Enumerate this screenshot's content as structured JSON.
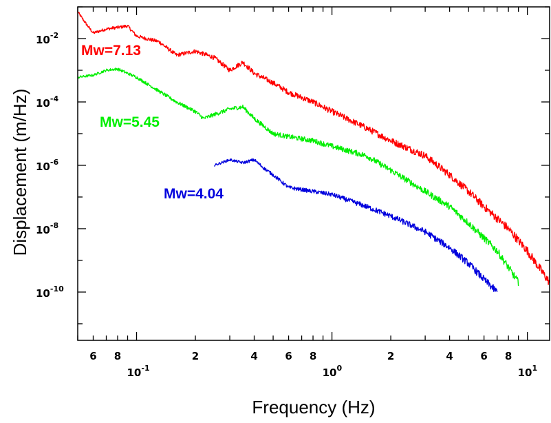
{
  "chart_data": {
    "type": "line",
    "title": "",
    "xlabel": "Frequency (Hz)",
    "ylabel": "Displacement (m/Hz)",
    "xscale": "log",
    "yscale": "log",
    "xlim": [
      0.05,
      13
    ],
    "ylim": [
      3e-12,
      0.1
    ],
    "grid": false,
    "legend": "none",
    "x_ticks": [
      {
        "value": 0.1,
        "base": "10",
        "exp": "-1"
      },
      {
        "value": 1,
        "base": "10",
        "exp": "0"
      },
      {
        "value": 10,
        "base": "10",
        "exp": "1"
      }
    ],
    "x_minor_labels": [
      {
        "value": 0.06,
        "label": "6"
      },
      {
        "value": 0.08,
        "label": "8"
      },
      {
        "value": 0.2,
        "label": "2"
      },
      {
        "value": 0.4,
        "label": "4"
      },
      {
        "value": 0.6,
        "label": "6"
      },
      {
        "value": 0.8,
        "label": "8"
      },
      {
        "value": 2,
        "label": "2"
      },
      {
        "value": 4,
        "label": "4"
      },
      {
        "value": 6,
        "label": "6"
      },
      {
        "value": 8,
        "label": "8"
      }
    ],
    "y_ticks": [
      {
        "value": 0.01,
        "base": "10",
        "exp": "-2"
      },
      {
        "value": 0.0001,
        "base": "10",
        "exp": "-4"
      },
      {
        "value": 1e-06,
        "base": "10",
        "exp": "-6"
      },
      {
        "value": 1e-08,
        "base": "10",
        "exp": "-8"
      },
      {
        "value": 1e-10,
        "base": "10",
        "exp": "-10"
      }
    ],
    "series": [
      {
        "name": "Mw=7.13",
        "color": "#ff0000",
        "noise_dex": 0.14,
        "points": [
          [
            0.05,
            0.07
          ],
          [
            0.055,
            0.03
          ],
          [
            0.06,
            0.015
          ],
          [
            0.07,
            0.02
          ],
          [
            0.09,
            0.025
          ],
          [
            0.1,
            0.012
          ],
          [
            0.13,
            0.008
          ],
          [
            0.16,
            0.003
          ],
          [
            0.2,
            0.004
          ],
          [
            0.25,
            0.0025
          ],
          [
            0.3,
            0.001
          ],
          [
            0.35,
            0.0018
          ],
          [
            0.4,
            0.0008
          ],
          [
            0.5,
            0.0004
          ],
          [
            0.6,
            0.0002
          ],
          [
            0.8,
            0.0001
          ],
          [
            1,
            5e-05
          ],
          [
            1.5,
            1.5e-05
          ],
          [
            2,
            6e-06
          ],
          [
            3,
            2e-06
          ],
          [
            4,
            5e-07
          ],
          [
            5,
            1.5e-07
          ],
          [
            6,
            5e-08
          ],
          [
            8,
            1e-08
          ],
          [
            10,
            2e-09
          ],
          [
            13,
            2e-10
          ]
        ]
      },
      {
        "name": "Mw=5.45",
        "color": "#00ee00",
        "noise_dex": 0.12,
        "points": [
          [
            0.05,
            0.0006
          ],
          [
            0.06,
            0.0007
          ],
          [
            0.07,
            0.001
          ],
          [
            0.08,
            0.0011
          ],
          [
            0.1,
            0.0006
          ],
          [
            0.12,
            0.0003
          ],
          [
            0.16,
            0.0001
          ],
          [
            0.2,
            5e-05
          ],
          [
            0.22,
            3e-05
          ],
          [
            0.3,
            6e-05
          ],
          [
            0.35,
            7e-05
          ],
          [
            0.4,
            3e-05
          ],
          [
            0.5,
            1e-05
          ],
          [
            0.6,
            8e-06
          ],
          [
            0.8,
            6e-06
          ],
          [
            1,
            4e-06
          ],
          [
            1.5,
            2e-06
          ],
          [
            2,
            7e-07
          ],
          [
            3,
            1.5e-07
          ],
          [
            4,
            5e-08
          ],
          [
            5,
            1.5e-08
          ],
          [
            6,
            5e-09
          ],
          [
            7,
            2e-09
          ],
          [
            8,
            6e-10
          ],
          [
            9,
            2e-10
          ]
        ]
      },
      {
        "name": "Mw=4.04",
        "color": "#0000dd",
        "noise_dex": 0.12,
        "points": [
          [
            0.25,
            1e-06
          ],
          [
            0.3,
            1.5e-06
          ],
          [
            0.35,
            1.2e-06
          ],
          [
            0.4,
            1.5e-06
          ],
          [
            0.45,
            8e-07
          ],
          [
            0.5,
            5e-07
          ],
          [
            0.6,
            2e-07
          ],
          [
            0.8,
            1.5e-07
          ],
          [
            1,
            1.2e-07
          ],
          [
            1.5,
            5e-08
          ],
          [
            2,
            2.5e-08
          ],
          [
            3,
            8e-09
          ],
          [
            4,
            2.5e-09
          ],
          [
            5,
            8e-10
          ],
          [
            6,
            2.5e-10
          ],
          [
            7,
            1e-10
          ]
        ]
      }
    ]
  }
}
